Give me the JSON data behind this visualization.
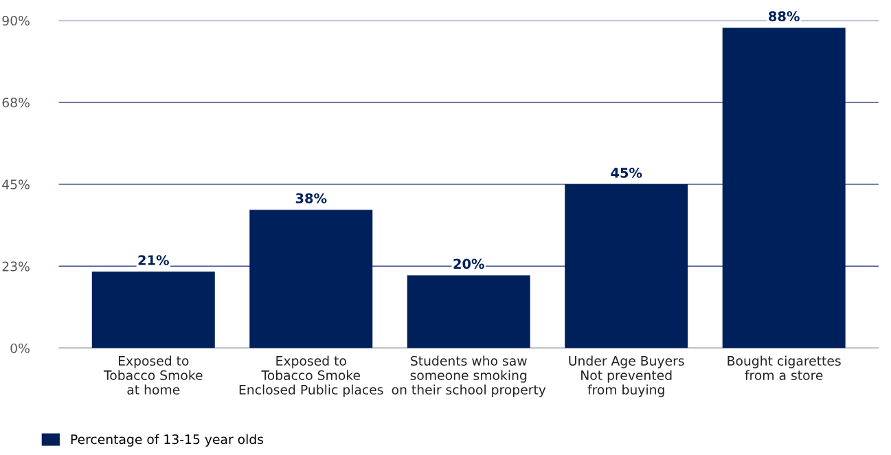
{
  "chart_data": {
    "type": "bar",
    "categories": [
      "Exposed to\nTobacco Smoke\nat home",
      "Exposed to\nTobacco Smoke\nEnclosed Public places",
      "Students who saw\nsomeone smoking\non their school property",
      "Under Age Buyers\nNot prevented\nfrom buying",
      "Bought cigarettes\nfrom a store"
    ],
    "series": [
      {
        "name": "Percentage of 13-15 year olds",
        "color": "#00205b",
        "values": [
          21,
          38,
          20,
          45,
          88
        ]
      }
    ],
    "value_labels": [
      "21%",
      "38%",
      "20%",
      "45%",
      "88%"
    ],
    "ylim": [
      0,
      90
    ],
    "yticks": [
      {
        "value": 0,
        "label": "0%"
      },
      {
        "value": 22.5,
        "label": "23%"
      },
      {
        "value": 45,
        "label": "45%"
      },
      {
        "value": 67.5,
        "label": "68%"
      },
      {
        "value": 90,
        "label": "90%"
      }
    ],
    "grid": "y",
    "legend": "bottom left"
  }
}
